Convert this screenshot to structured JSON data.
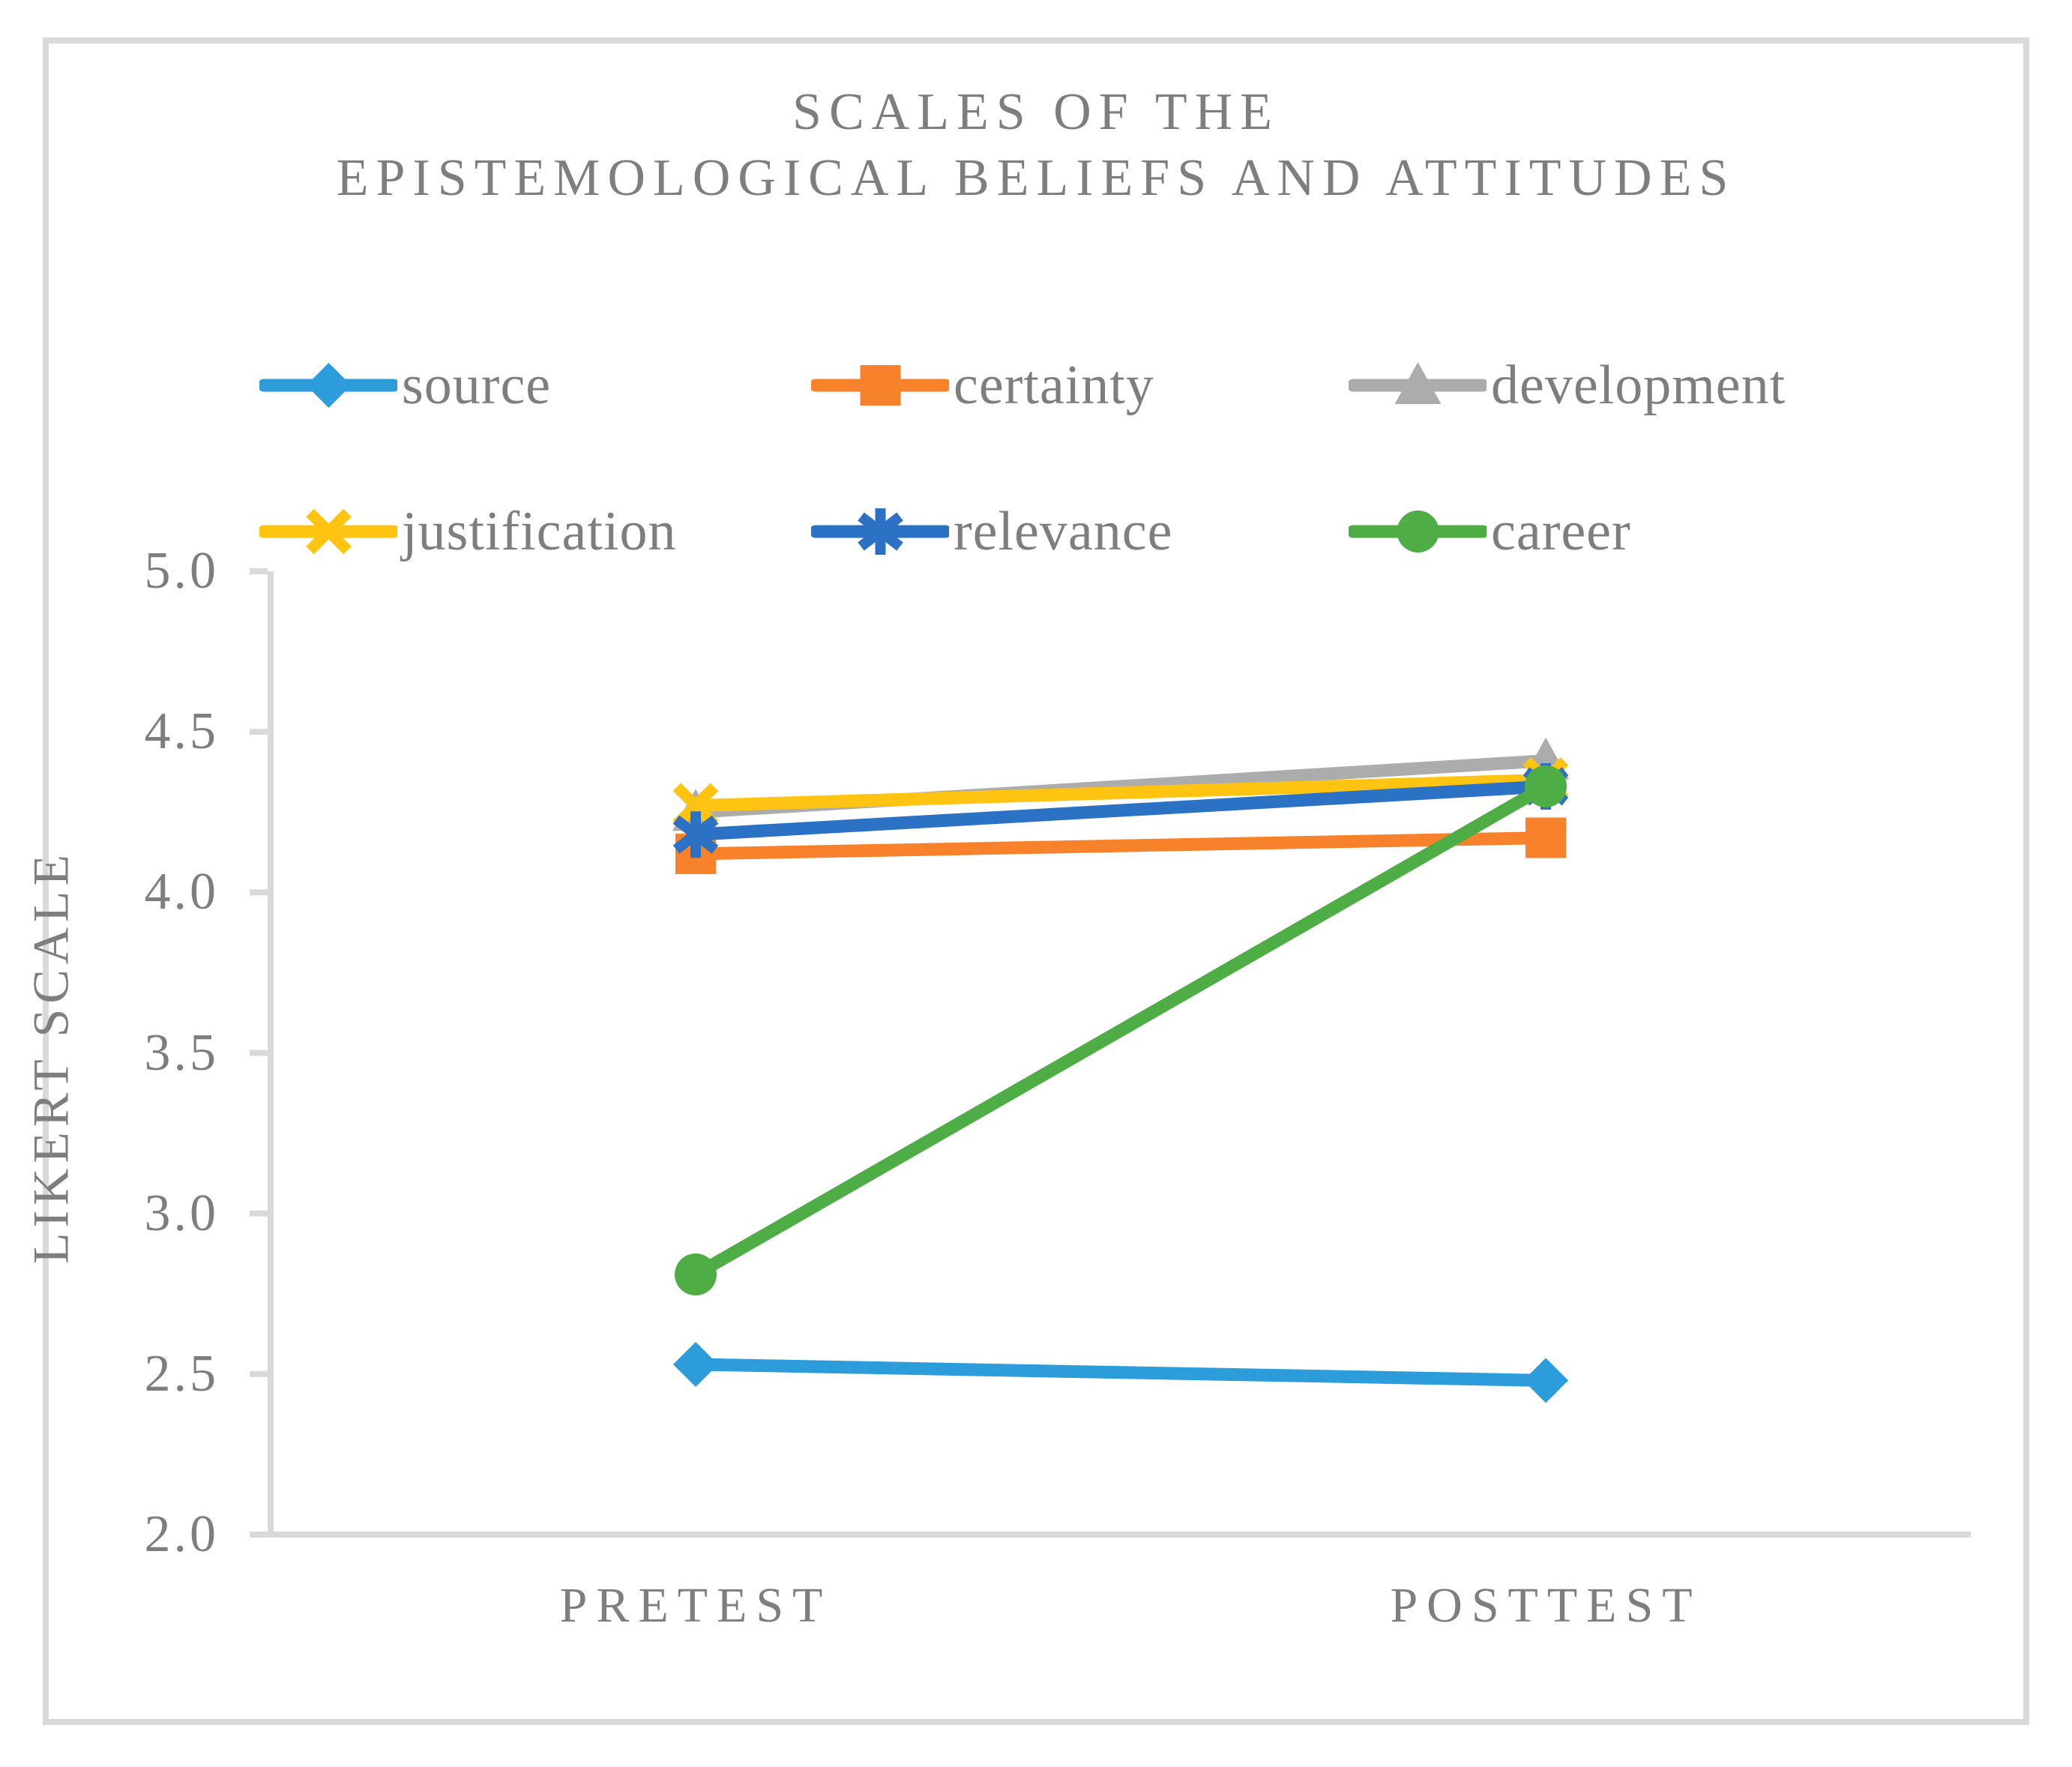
{
  "title": {
    "line1": "SCALES OF THE",
    "line2": "EPISTEMOLOGICAL BELIEFS AND ATTITUDES"
  },
  "axes": {
    "y_title": "LIKERT SCALE",
    "y_tick_labels": [
      "5.0",
      "4.5",
      "4.0",
      "3.5",
      "3.0",
      "2.5",
      "2.0"
    ],
    "x_category_labels": [
      "PRETEST",
      "POSTTEST"
    ]
  },
  "colors": {
    "axis_line": "#D9D9D9",
    "frame_border": "#D9D9D9",
    "text": "#7E7E7E",
    "background": "#FFFFFF"
  },
  "chart_data": {
    "type": "line",
    "title": "SCALES OF THE EPISTEMOLOGICAL BELIEFS AND ATTITUDES",
    "xlabel": "",
    "ylabel": "LIKERT SCALE",
    "categories": [
      "PRETEST",
      "POSTTEST"
    ],
    "series": [
      {
        "name": "source",
        "marker": "diamond",
        "color": "#2D9CDB",
        "values": [
          2.53,
          2.48
        ]
      },
      {
        "name": "certainty",
        "marker": "square",
        "color": "#F8812B",
        "values": [
          4.12,
          4.17
        ]
      },
      {
        "name": "development",
        "marker": "triangle",
        "color": "#ACACAC",
        "values": [
          4.25,
          4.41
        ]
      },
      {
        "name": "justification",
        "marker": "x",
        "color": "#FFC411",
        "values": [
          4.27,
          4.35
        ]
      },
      {
        "name": "relevance",
        "marker": "asterisk",
        "color": "#2B71C4",
        "values": [
          4.18,
          4.33
        ]
      },
      {
        "name": "career",
        "marker": "circle",
        "color": "#4EAE45",
        "values": [
          2.81,
          4.33
        ]
      }
    ],
    "ylim": [
      2.0,
      5.0
    ],
    "y_tick_step": 0.5,
    "grid": false,
    "legend_position": "top"
  }
}
